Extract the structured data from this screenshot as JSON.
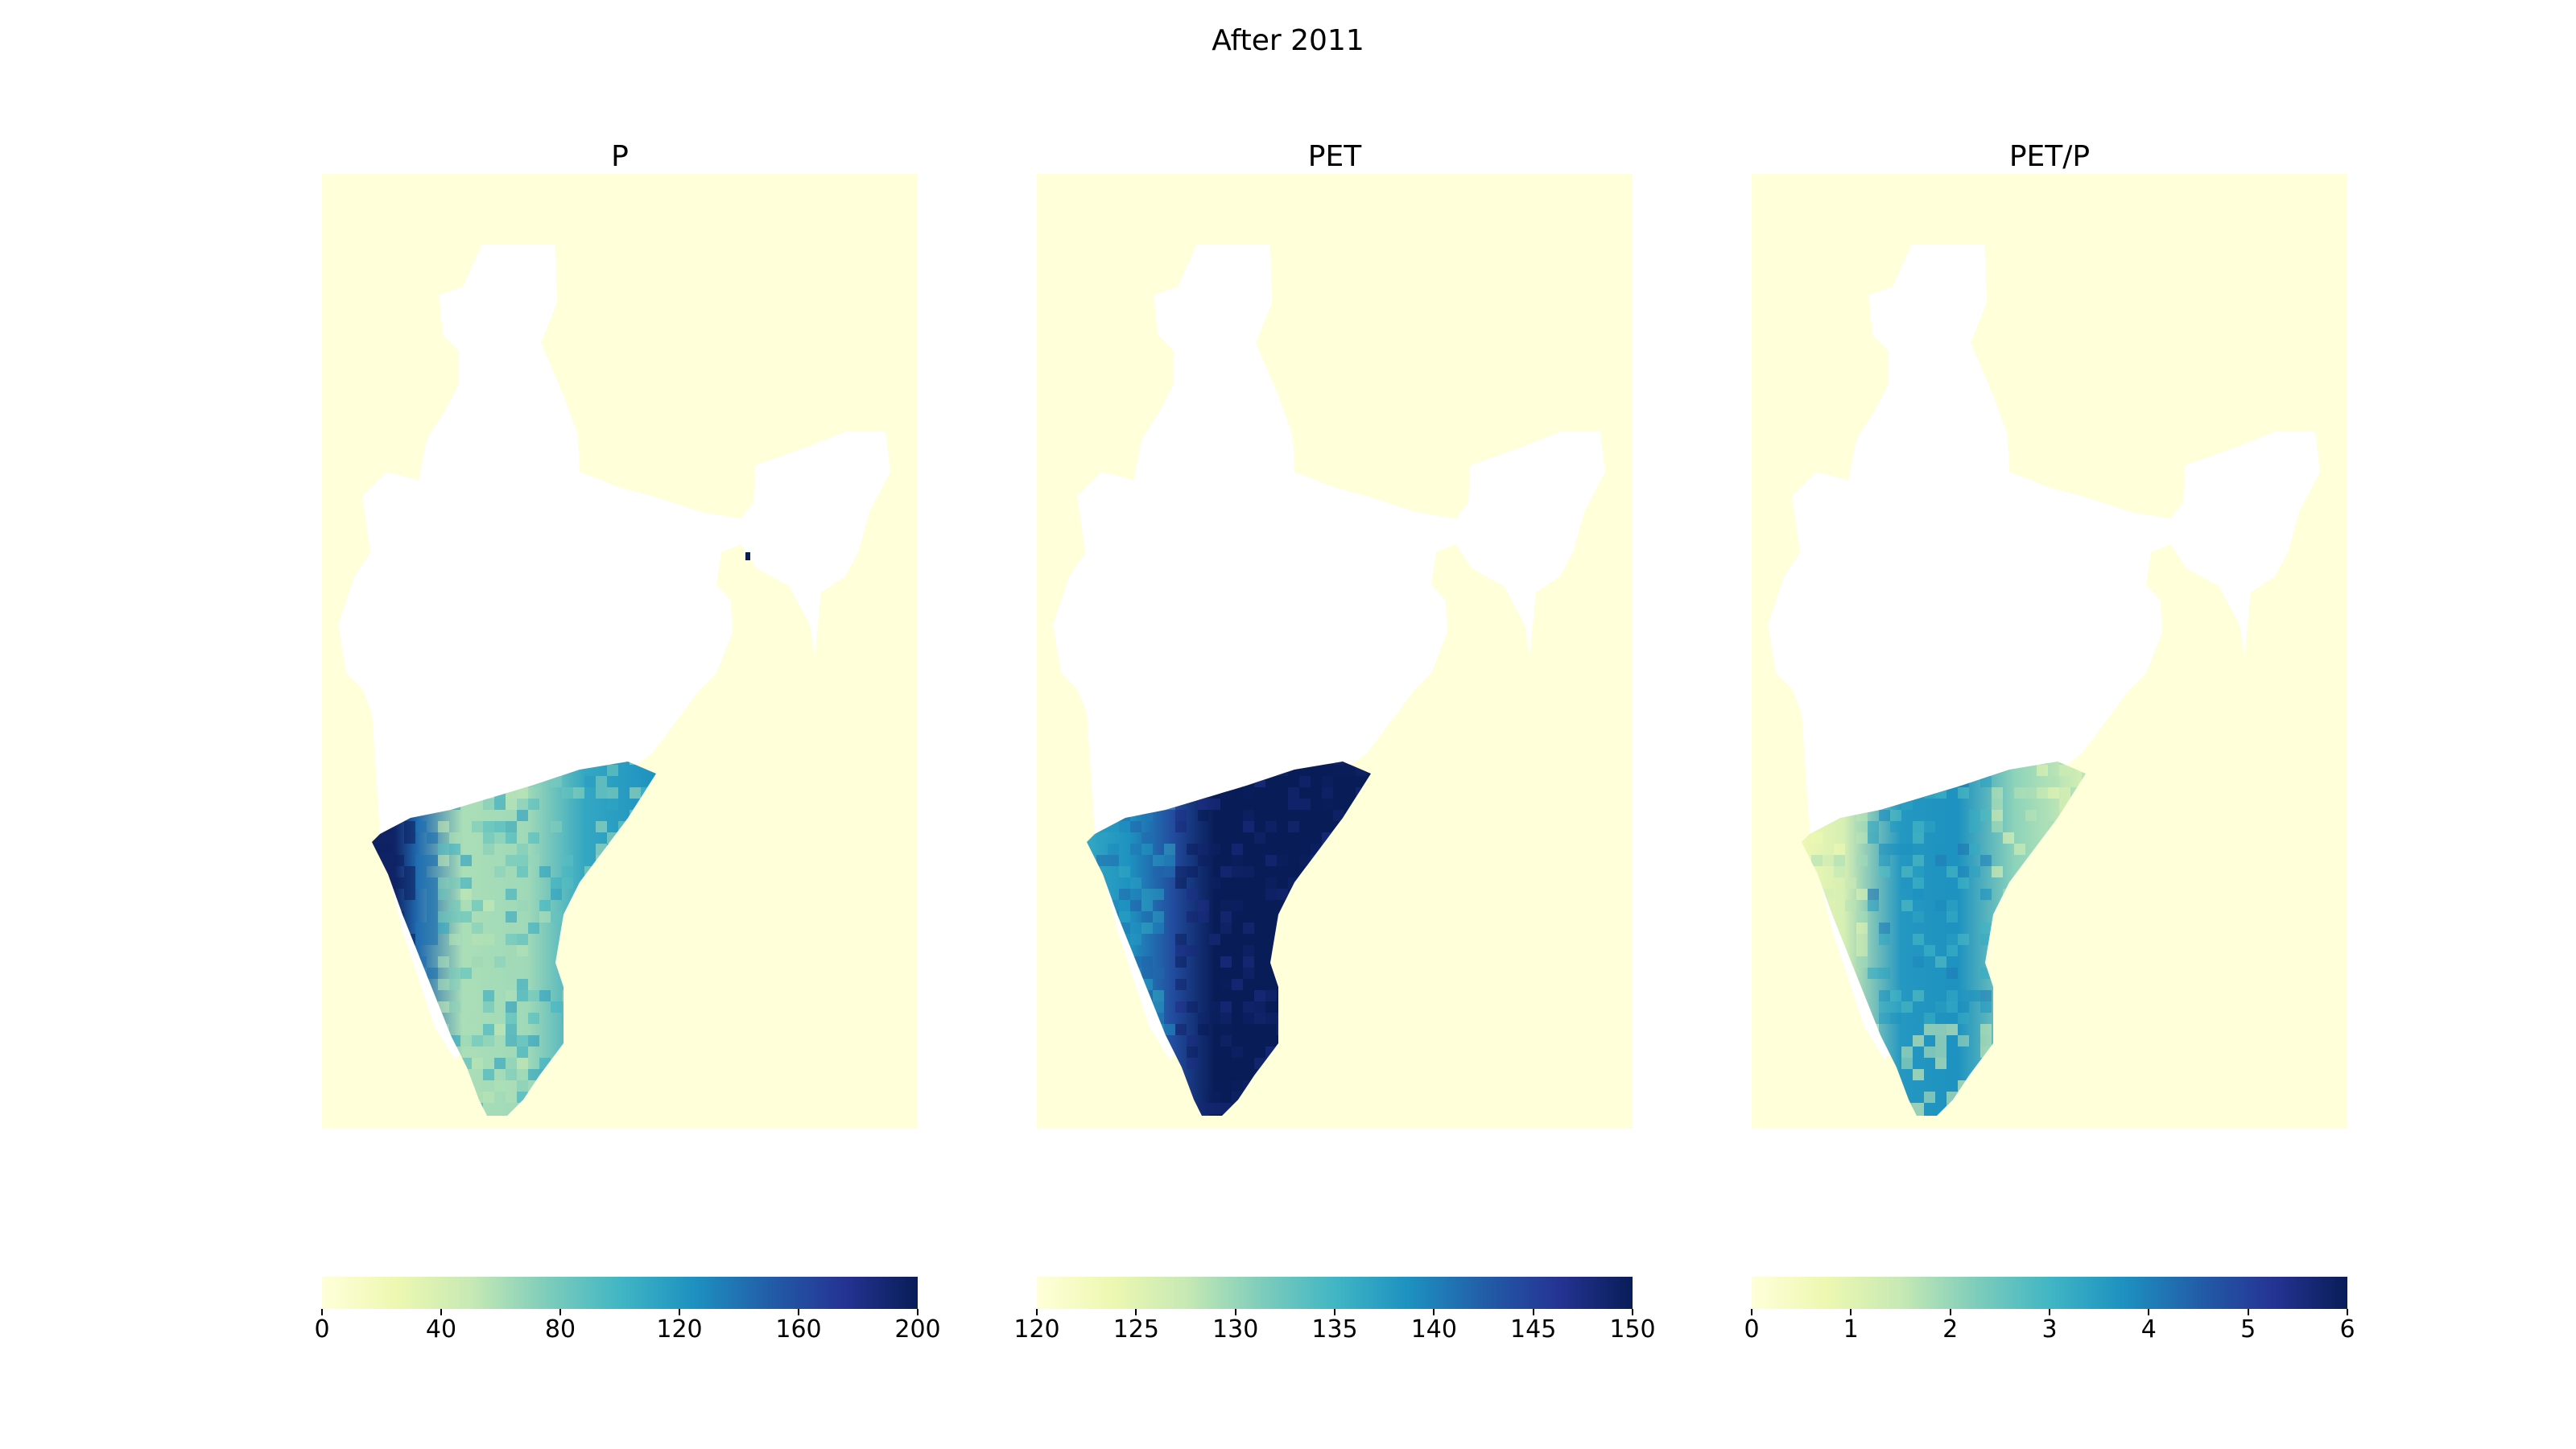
{
  "figure": {
    "suptitle": "After 2011"
  },
  "colors": {
    "background": "#ffffd9",
    "land_mask": "#ffffff",
    "cmap_YlGnBu": [
      "#ffffd9",
      "#edf8b1",
      "#c7e9b4",
      "#7fcdbb",
      "#41b6c4",
      "#1d91c0",
      "#225ea8",
      "#253494",
      "#081d58"
    ]
  },
  "chart_data": [
    {
      "type": "heatmap",
      "title": "P",
      "colorbar": {
        "min": 0,
        "max": 200,
        "ticks": [
          "0",
          "40",
          "80",
          "120",
          "160",
          "200"
        ]
      },
      "colormap": "YlGnBu",
      "region": "Southern India (peninsula south of ~15°N)",
      "pattern": "High values (~180-200) along the western coastal strip; moderate (~100-130) on eastern side; low-moderate (~40-70) in interior plateau"
    },
    {
      "type": "heatmap",
      "title": "PET",
      "colorbar": {
        "min": 120,
        "max": 150,
        "ticks": [
          "120",
          "125",
          "130",
          "135",
          "140",
          "145",
          "150"
        ]
      },
      "colormap": "YlGnBu",
      "region": "Southern India (peninsula south of ~15°N)",
      "pattern": "Very high values (~150) across eastern and central interior; lower (~135-140) along western coast"
    },
    {
      "type": "heatmap",
      "title": "PET/P",
      "colorbar": {
        "min": 0,
        "max": 6,
        "ticks": [
          "0",
          "1",
          "2",
          "3",
          "4",
          "5",
          "6"
        ]
      },
      "colormap": "YlGnBu",
      "region": "Southern India (peninsula south of ~15°N)",
      "pattern": "Highest values (~3.5-4) in central interior plateau; low (~1) along western coast and southern tip"
    }
  ]
}
